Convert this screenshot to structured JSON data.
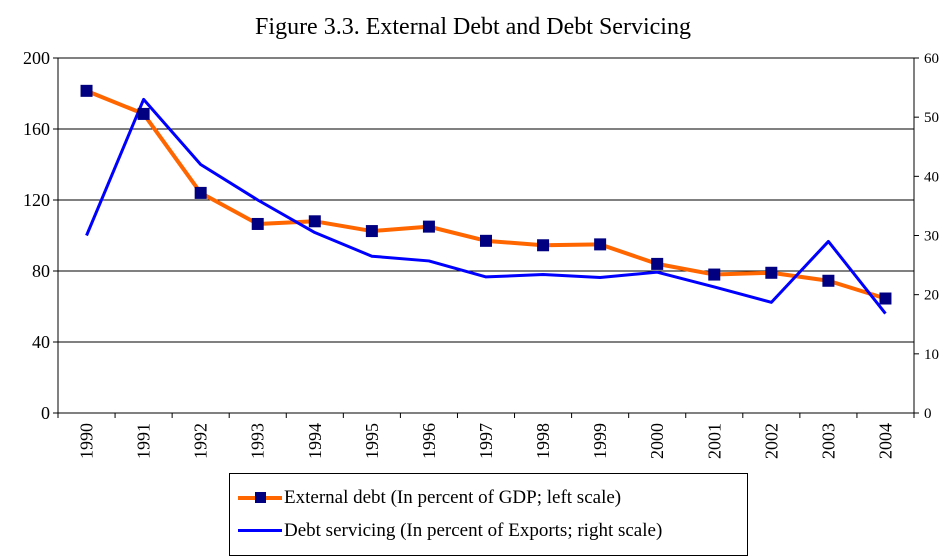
{
  "chart_data": {
    "type": "line",
    "title": "Figure 3.3. External Debt and Debt Servicing",
    "categories": [
      "1990",
      "1991",
      "1992",
      "1993",
      "1994",
      "1995",
      "1996",
      "1997",
      "1998",
      "1999",
      "2000",
      "2001",
      "2002",
      "2003",
      "2004"
    ],
    "y_left": {
      "ylim": [
        0,
        200
      ],
      "ticks": [
        0,
        40,
        80,
        120,
        160,
        200
      ]
    },
    "y_right": {
      "ylim": [
        0,
        60
      ],
      "ticks": [
        0,
        10,
        20,
        30,
        40,
        50,
        60
      ]
    },
    "grid": "horizontal",
    "legend_position": "bottom",
    "series": [
      {
        "name": "External debt (In percent of GDP; left scale)",
        "axis": "left",
        "color": "#FF6600",
        "marker_color": "#000080",
        "values": [
          181.5,
          168.5,
          124,
          106.5,
          108,
          102.5,
          105,
          97,
          94.5,
          95,
          84,
          78,
          79,
          74.5,
          64.5
        ]
      },
      {
        "name": "Debt servicing (In percent of Exports; right scale)",
        "axis": "right",
        "color": "#0000FF",
        "values": [
          30,
          53,
          42,
          36,
          30.5,
          26.5,
          25.7,
          23,
          23.4,
          22.9,
          23.8,
          21.3,
          18.7,
          29,
          16.8
        ]
      }
    ]
  }
}
